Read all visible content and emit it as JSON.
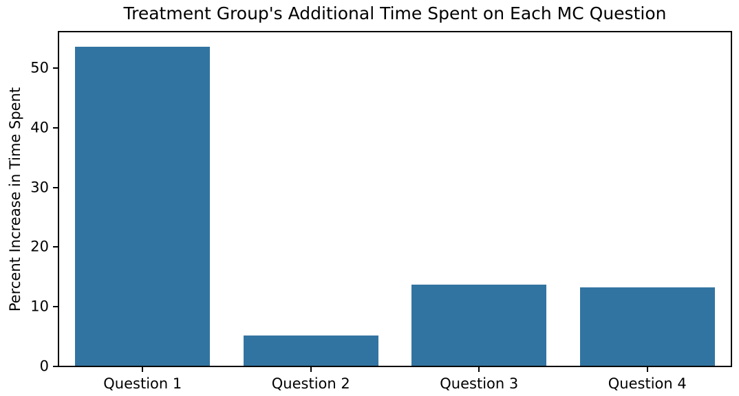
{
  "chart_data": {
    "type": "bar",
    "title": "Treatment Group's Additional Time Spent on Each MC Question",
    "categories": [
      "Question 1",
      "Question 2",
      "Question 3",
      "Question 4"
    ],
    "values": [
      53.6,
      5.2,
      13.7,
      13.3
    ],
    "xlabel": "",
    "ylabel": "Percent Increase in Time Spent",
    "ylim": [
      0,
      56.1
    ],
    "yticks": [
      0,
      10,
      20,
      30,
      40,
      50
    ],
    "bar_width_fraction": 0.8,
    "grid": "off",
    "legend": "none",
    "bar_color": "#3274a1",
    "background_color": "#ffffff",
    "spine_color": "#000000",
    "text_color": "#000000"
  }
}
